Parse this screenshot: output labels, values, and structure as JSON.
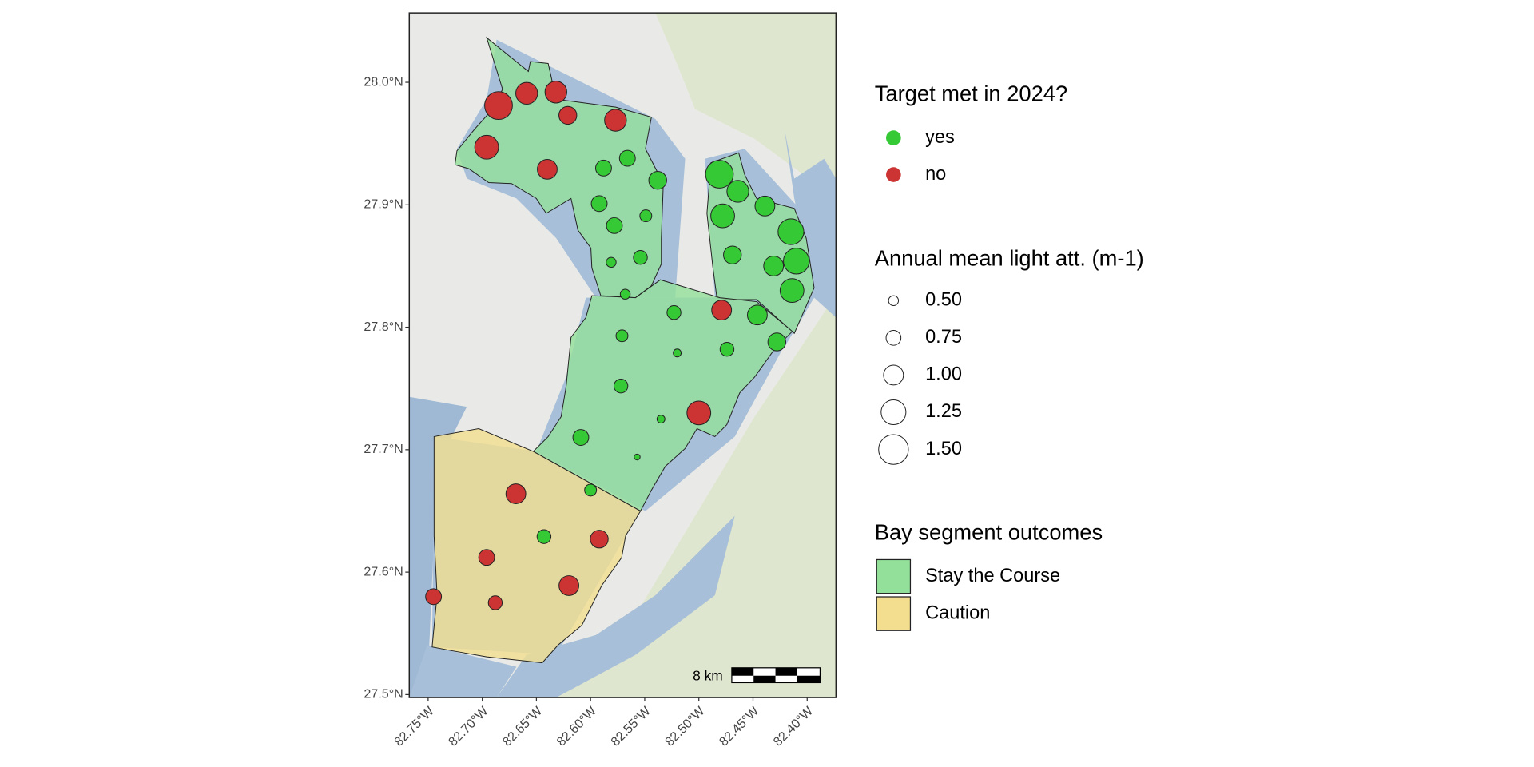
{
  "chart_data": {
    "type": "scatter",
    "legend_title": "Target met in 2024?",
    "xlim": [
      -82.7674,
      -82.3734
    ],
    "ylim": [
      27.4976,
      28.0567
    ],
    "xticks": [
      {
        "value": -82.75,
        "label": "82.75°W"
      },
      {
        "value": -82.7,
        "label": "82.70°W"
      },
      {
        "value": -82.65,
        "label": "82.65°W"
      },
      {
        "value": -82.6,
        "label": "82.60°W"
      },
      {
        "value": -82.55,
        "label": "82.55°W"
      },
      {
        "value": -82.5,
        "label": "82.50°W"
      },
      {
        "value": -82.45,
        "label": "82.45°W"
      },
      {
        "value": -82.4,
        "label": "82.40°W"
      }
    ],
    "yticks": [
      {
        "value": 27.5,
        "label": "27.5°N"
      },
      {
        "value": 27.6,
        "label": "27.6°N"
      },
      {
        "value": 27.7,
        "label": "27.7°N"
      },
      {
        "value": 27.8,
        "label": "27.8°N"
      },
      {
        "value": 27.9,
        "label": "27.9°N"
      },
      {
        "value": 28.0,
        "label": "28.0°N"
      }
    ],
    "series": [
      {
        "name": "yes",
        "color": "#35c935",
        "x": [
          -82.481,
          -82.464,
          -82.588,
          -82.566,
          -82.538,
          -82.592,
          -82.549,
          -82.578,
          -82.581,
          -82.554,
          -82.478,
          -82.439,
          -82.415,
          -82.469,
          -82.431,
          -82.41,
          -82.414,
          -82.568,
          -82.523,
          -82.446,
          -82.571,
          -82.52,
          -82.474,
          -82.428,
          -82.572,
          -82.535,
          -82.609,
          -82.557,
          -82.6,
          -82.643
        ],
        "y": [
          27.925,
          27.911,
          27.93,
          27.938,
          27.92,
          27.901,
          27.891,
          27.883,
          27.853,
          27.857,
          27.891,
          27.899,
          27.878,
          27.859,
          27.85,
          27.854,
          27.83,
          27.827,
          27.812,
          27.81,
          27.793,
          27.779,
          27.782,
          27.788,
          27.752,
          27.725,
          27.71,
          27.694,
          27.667,
          27.629
        ],
        "size": [
          1.4,
          1.1,
          0.8,
          0.8,
          0.9,
          0.8,
          0.6,
          0.8,
          0.5,
          0.7,
          1.2,
          1.0,
          1.3,
          0.9,
          1.0,
          1.3,
          1.2,
          0.5,
          0.7,
          1.0,
          0.6,
          0.4,
          0.7,
          0.9,
          0.7,
          0.4,
          0.8,
          0.3,
          0.6,
          0.7
        ]
      },
      {
        "name": "no",
        "color": "#cc3333",
        "x": [
          -82.685,
          -82.659,
          -82.632,
          -82.621,
          -82.577,
          -82.696,
          -82.64,
          -82.479,
          -82.5,
          -82.669,
          -82.592,
          -82.696,
          -82.62,
          -82.745,
          -82.688
        ],
        "y": [
          27.981,
          27.991,
          27.992,
          27.973,
          27.969,
          27.947,
          27.929,
          27.814,
          27.73,
          27.664,
          27.627,
          27.612,
          27.589,
          27.58,
          27.575
        ],
        "size": [
          1.4,
          1.1,
          1.1,
          0.9,
          1.1,
          1.2,
          1.0,
          1.0,
          1.2,
          1.0,
          0.9,
          0.8,
          1.0,
          0.8,
          0.7
        ]
      }
    ],
    "size_legend": {
      "title": "Annual mean light att. (m-1)",
      "values": [
        {
          "value": 0.5,
          "label": "0.50"
        },
        {
          "value": 0.75,
          "label": "0.75"
        },
        {
          "value": 1,
          "label": "1.00"
        },
        {
          "value": 1.25,
          "label": "1.25"
        },
        {
          "value": 1.5,
          "label": "1.50"
        }
      ]
    },
    "segment_legend": {
      "title": "Bay segment outcomes",
      "items": [
        {
          "name": "Stay the Course",
          "color": "#93e09b"
        },
        {
          "name": "Caution",
          "color": "#f2de8e"
        }
      ]
    },
    "scale_bar_label": "8 km"
  }
}
